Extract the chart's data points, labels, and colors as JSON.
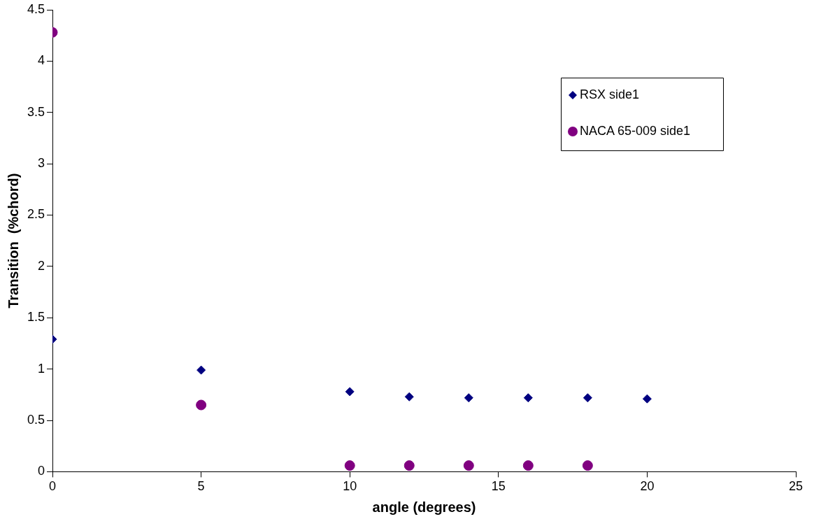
{
  "chart_data": {
    "type": "scatter",
    "xlabel": "angle (degrees)",
    "ylabel": "Transition  (%chord)",
    "xlim": [
      0,
      25
    ],
    "xticks": [
      0,
      5,
      10,
      15,
      20,
      25
    ],
    "ylim": [
      0,
      4.5
    ],
    "yticks": [
      0,
      0.5,
      1,
      1.5,
      2,
      2.5,
      3,
      3.5,
      4,
      4.5
    ],
    "grid": false,
    "legend": "top right",
    "series": [
      {
        "name": "RSX side1",
        "color": "#000080",
        "marker": "diamond",
        "x": [
          0,
          5,
          10,
          12,
          14,
          16,
          18,
          20
        ],
        "values": [
          1.29,
          0.99,
          0.78,
          0.73,
          0.72,
          0.72,
          0.72,
          0.71
        ]
      },
      {
        "name": "NACA 65-009 side1",
        "color": "#800080",
        "marker": "circle",
        "x": [
          0,
          5,
          10,
          12,
          14,
          16,
          18
        ],
        "values": [
          4.28,
          0.65,
          0.06,
          0.06,
          0.06,
          0.06,
          0.06
        ]
      }
    ]
  }
}
